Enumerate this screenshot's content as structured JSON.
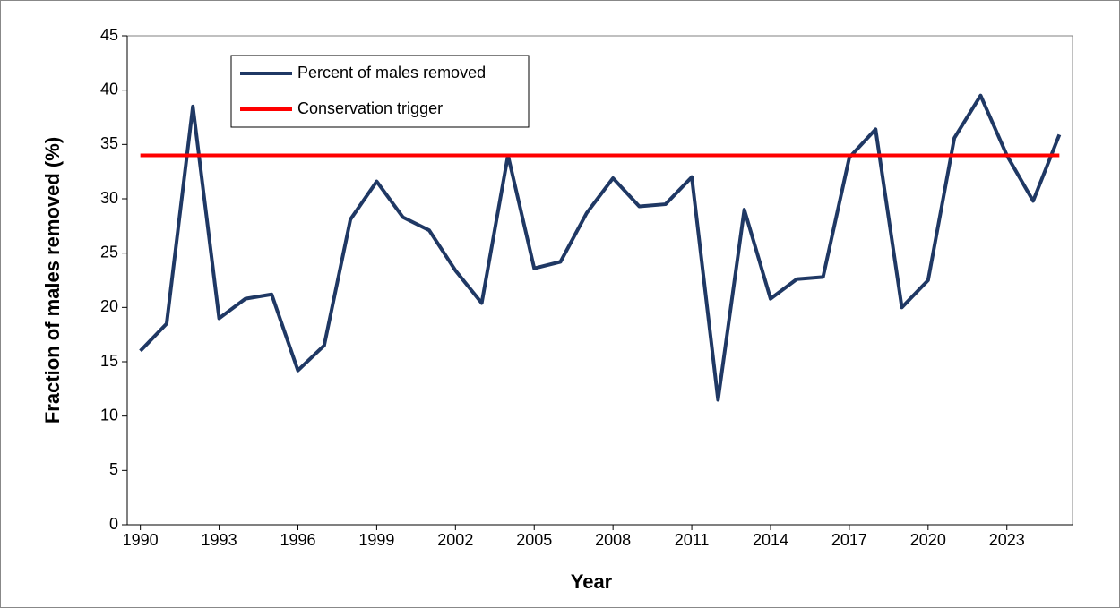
{
  "chart_data": {
    "type": "line",
    "x_label": "Year",
    "y_label": "Fraction of males removed (%)",
    "x": [
      1990,
      1991,
      1992,
      1993,
      1994,
      1995,
      1996,
      1997,
      1998,
      1999,
      2000,
      2001,
      2002,
      2003,
      2004,
      2005,
      2006,
      2007,
      2008,
      2009,
      2010,
      2011,
      2012,
      2013,
      2014,
      2015,
      2016,
      2017,
      2018,
      2019,
      2020,
      2021,
      2022,
      2023,
      2024,
      2025
    ],
    "series": [
      {
        "name": "Percent of males removed",
        "color": "#1f3864",
        "values": [
          16.0,
          18.5,
          38.5,
          19.0,
          20.8,
          21.2,
          14.2,
          16.5,
          28.1,
          31.6,
          28.3,
          27.1,
          23.4,
          20.4,
          34.0,
          23.6,
          24.2,
          28.7,
          31.9,
          29.3,
          29.5,
          32.0,
          11.5,
          29.0,
          20.8,
          22.6,
          22.8,
          33.8,
          36.4,
          20.0,
          22.5,
          35.6,
          39.5,
          34.0,
          29.8,
          35.9
        ]
      },
      {
        "name": "Conservation trigger",
        "color": "#ff0000",
        "values": [
          34,
          34,
          34,
          34,
          34,
          34,
          34,
          34,
          34,
          34,
          34,
          34,
          34,
          34,
          34,
          34,
          34,
          34,
          34,
          34,
          34,
          34,
          34,
          34,
          34,
          34,
          34,
          34,
          34,
          34,
          34,
          34,
          34,
          34,
          34,
          34
        ]
      }
    ],
    "xlim": [
      1989.5,
      2025.5
    ],
    "xticks": [
      1990,
      1993,
      1996,
      1999,
      2002,
      2005,
      2008,
      2011,
      2014,
      2017,
      2020,
      2023
    ],
    "ylim": [
      0,
      45
    ],
    "yticks": [
      0,
      5,
      10,
      15,
      20,
      25,
      30,
      35,
      40,
      45
    ],
    "grid": false,
    "legend_position": "upper left"
  }
}
